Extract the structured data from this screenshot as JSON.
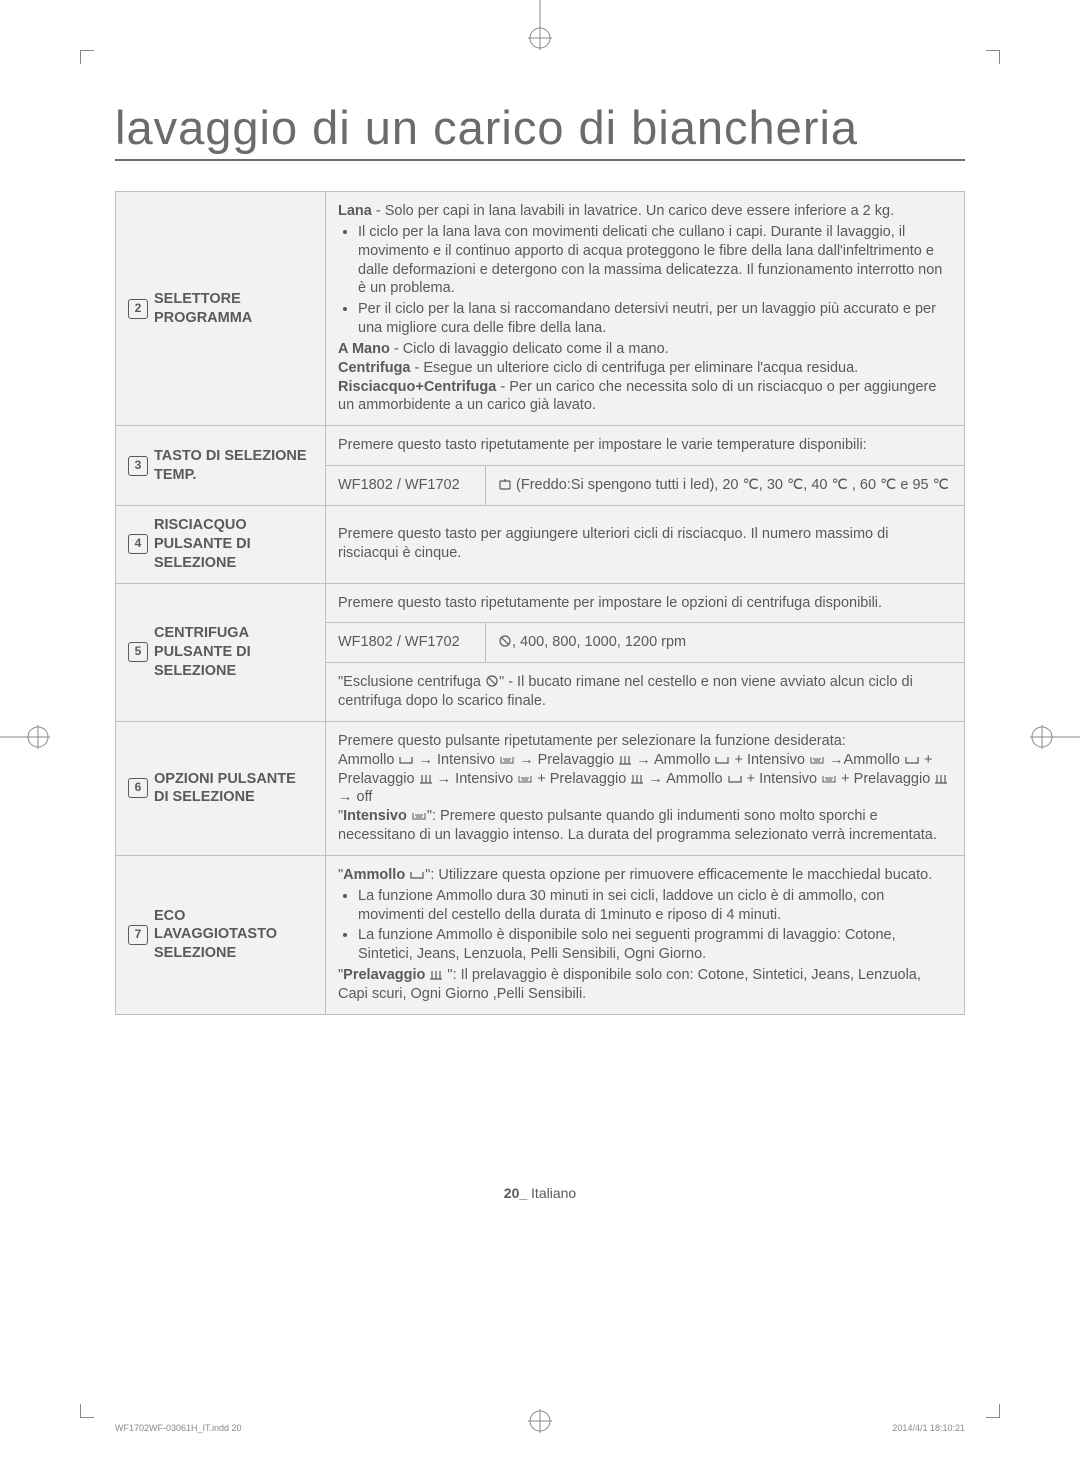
{
  "title": "lavaggio di un carico di biancheria",
  "rows": [
    {
      "num": "2",
      "label": "SELETTORE PROGRAMMA",
      "content": {
        "html": "<b>Lana</b> - Solo per capi in lana lavabili in lavatrice.  Un carico deve essere inferiore a 2 kg.<ul class='bullets'><li>Il ciclo per la lana lava con movimenti delicati che cullano i capi. Durante il lavaggio, il movimento e il continuo apporto di acqua proteggono le fibre della lana dall'infeltrimento e dalle deformazioni e detergono con la massima delicatezza. Il funzionamento interrotto non è un problema.</li><li>Per il ciclo per la lana si raccomandano detersivi neutri, per un lavaggio più accurato e per una migliore cura delle fibre della lana.</li></ul><b>A Mano</b> - Ciclo di lavaggio delicato come il a mano.<br><b>Centrifuga</b> - Esegue un ulteriore ciclo di centrifuga per eliminare l'acqua residua.<br><b>Risciacquo+Centrifuga</b> - Per un carico che necessita solo di un risciacquo o per aggiungere un ammorbidente a un carico già lavato."
      }
    },
    {
      "num": "3",
      "label": "TASTO DI SELEZIONE TEMP.",
      "intro": "Premere questo tasto ripetutamente per impostare le varie temperature disponibili:",
      "subrow": {
        "model": "WF1802 / WF1702",
        "value_html": "<svg class='icon-inline' width='14' height='14'><rect x='2' y='4' width='10' height='8' rx='1' fill='none' stroke='#5a5a5a' stroke-width='1.2'/><line x1='7' y1='2' x2='7' y2='5' stroke='#5a5a5a' stroke-width='1.2'/></svg> (Freddo:Si spengono tutti i led), 20 ℃, 30 ℃, 40 ℃ , 60 ℃ e 95 ℃"
      }
    },
    {
      "num": "4",
      "label": "RISCIACQUO PULSANTE DI SELEZIONE",
      "content": {
        "text": "Premere questo tasto per aggiungere ulteriori cicli di risciacquo. Il numero massimo di risciacqui è cinque."
      }
    },
    {
      "num": "5",
      "label": "CENTRIFUGA PULSANTE DI SELEZIONE",
      "intro": "Premere questo tasto ripetutamente per impostare le opzioni di centrifuga disponibili.",
      "subrow": {
        "model": "WF1802 / WF1702",
        "value_html": "<svg class='icon-inline' width='14' height='14'><circle cx='7' cy='7' r='5' fill='none' stroke='#5a5a5a' stroke-width='1.2'/><line x1='3' y1='3' x2='11' y2='11' stroke='#5a5a5a' stroke-width='1.2'/></svg>, 400, 800, 1000, 1200 rpm"
      },
      "outro_html": "\"Esclusione centrifuga <svg class='icon-inline' width='14' height='14'><circle cx='7' cy='7' r='5' fill='none' stroke='#5a5a5a' stroke-width='1.2'/><line x1='3' y1='3' x2='11' y2='11' stroke='#5a5a5a' stroke-width='1.2'/></svg>\" - Il bucato rimane nel cestello e non viene avviato alcun ciclo di centrifuga dopo lo scarico finale."
    },
    {
      "num": "6",
      "label": "OPZIONI PULSANTE DI SELEZIONE",
      "content": {
        "html": "Premere questo pulsante ripetutamente per selezionare la funzione desiderata:<br>Ammollo <svg class='icon-inline' width='16' height='12'><path d='M2 3 L2 9 L14 9 L14 3' fill='none' stroke='#5a5a5a' stroke-width='1.2'/></svg> → Intensivo <svg class='icon-inline' width='16' height='12'><path d='M2 3 L2 9 L14 9 L14 3 M4 5 L12 5 M5 7 L11 7' fill='none' stroke='#5a5a5a' stroke-width='1'/></svg> → Prelavaggio <svg class='icon-inline' width='14' height='12'><path d='M3 2 L3 10 M7 2 L7 10 M11 2 L11 10 M1 10 L13 10' fill='none' stroke='#5a5a5a' stroke-width='1.2'/></svg> → Ammollo <svg class='icon-inline' width='16' height='12'><path d='M2 3 L2 9 L14 9 L14 3' fill='none' stroke='#5a5a5a' stroke-width='1.2'/></svg> + Intensivo <svg class='icon-inline' width='16' height='12'><path d='M2 3 L2 9 L14 9 L14 3 M4 5 L12 5 M5 7 L11 7' fill='none' stroke='#5a5a5a' stroke-width='1'/></svg> →Ammollo <svg class='icon-inline' width='16' height='12'><path d='M2 3 L2 9 L14 9 L14 3' fill='none' stroke='#5a5a5a' stroke-width='1.2'/></svg> + Prelavaggio <svg class='icon-inline' width='14' height='12'><path d='M3 2 L3 10 M7 2 L7 10 M11 2 L11 10 M1 10 L13 10' fill='none' stroke='#5a5a5a' stroke-width='1.2'/></svg> → Intensivo <svg class='icon-inline' width='16' height='12'><path d='M2 3 L2 9 L14 9 L14 3 M4 5 L12 5 M5 7 L11 7' fill='none' stroke='#5a5a5a' stroke-width='1'/></svg> + Prelavaggio <svg class='icon-inline' width='14' height='12'><path d='M3 2 L3 10 M7 2 L7 10 M11 2 L11 10 M1 10 L13 10' fill='none' stroke='#5a5a5a' stroke-width='1.2'/></svg> → Ammollo <svg class='icon-inline' width='16' height='12'><path d='M2 3 L2 9 L14 9 L14 3' fill='none' stroke='#5a5a5a' stroke-width='1.2'/></svg> + Intensivo <svg class='icon-inline' width='16' height='12'><path d='M2 3 L2 9 L14 9 L14 3 M4 5 L12 5 M5 7 L11 7' fill='none' stroke='#5a5a5a' stroke-width='1'/></svg> + Prelavaggio <svg class='icon-inline' width='14' height='12'><path d='M3 2 L3 10 M7 2 L7 10 M11 2 L11 10 M1 10 L13 10' fill='none' stroke='#5a5a5a' stroke-width='1.2'/></svg> → off<br>\"<b>Intensivo</b> <svg class='icon-inline' width='16' height='12'><path d='M2 3 L2 9 L14 9 L14 3 M4 5 L12 5 M5 7 L11 7' fill='none' stroke='#5a5a5a' stroke-width='1'/></svg>\": Premere questo pulsante quando gli indumenti sono molto sporchi e necessitano di un lavaggio intenso. La durata del programma selezionato verrà incrementata."
      }
    },
    {
      "num": "7",
      "label": "ECO LAVAGGIOTASTO SELEZIONE",
      "content": {
        "html": "\"<b>Ammollo</b> <svg class='icon-inline' width='16' height='12'><path d='M2 3 L2 9 L14 9 L14 3' fill='none' stroke='#5a5a5a' stroke-width='1.2'/></svg>\": Utilizzare questa opzione per rimuovere efficacemente le macchiedal bucato.<ul class='bullets'><li>La funzione Ammollo dura 30 minuti in sei cicli, laddove un ciclo è di ammollo, con movimenti del cestello della durata di 1minuto e riposo di 4 minuti.</li><li>La funzione Ammollo è disponibile solo nei seguenti programmi di lavaggio: Cotone, Sintetici, Jeans, Lenzuola, Pelli Sensibili, Ogni Giorno.</li></ul>\"<b>Prelavaggio</b> <svg class='icon-inline' width='14' height='12'><path d='M3 2 L3 10 M7 2 L7 10 M11 2 L11 10 M1 10 L13 10' fill='none' stroke='#5a5a5a' stroke-width='1.2'/></svg> \": Il prelavaggio è disponibile solo con: Cotone, Sintetici, Jeans, Lenzuola, Capi scuri, Ogni Giorno ,Pelli Sensibili."
      }
    }
  ],
  "footer_page": {
    "num": "20_",
    "lang": "Italiano"
  },
  "footer_file": "WF1702WF-03061H_IT.indd   20",
  "footer_time": "2014/4/1   18:10:21"
}
